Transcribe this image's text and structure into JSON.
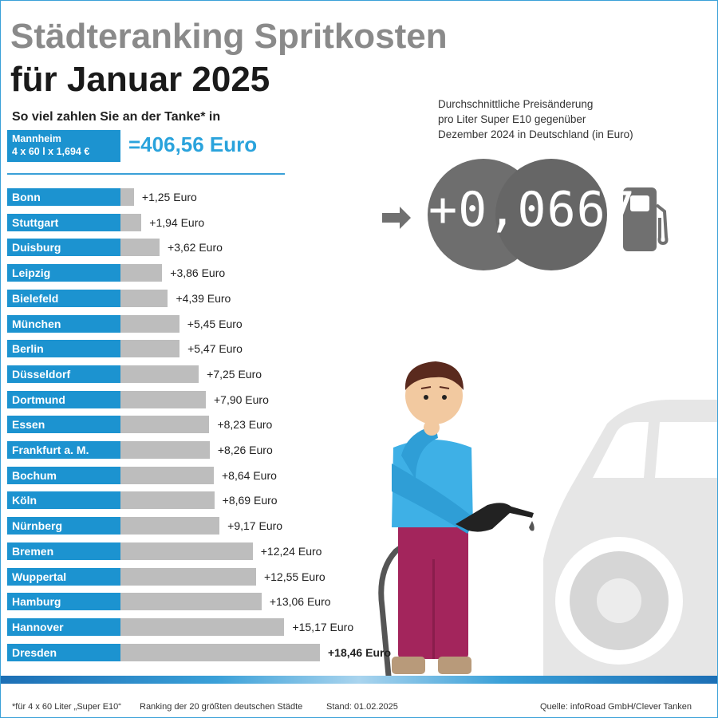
{
  "header": {
    "title_line1": "Städteranking Spritkosten",
    "title_line2": "für Januar 2025",
    "subtitle": "So viel zahlen Sie an der Tanke* in"
  },
  "reference": {
    "city": "Mannheim",
    "formula": "4 x 60 l x 1,694 €",
    "value_text": "=406,56 Euro"
  },
  "info": {
    "line1": "Durchschnittliche Preisänderung",
    "line2": "pro Liter Super E10 gegenüber",
    "line3": "Dezember 2024 in Deutschland (in Euro)",
    "price_change": "+0,0667"
  },
  "icons": [
    "arrow-right-icon",
    "fuel-pump-icon",
    "fuel-nozzle-icon",
    "car-icon",
    "person-illustration"
  ],
  "colors": {
    "city_label": "#1c93d0",
    "bar": "#bdbdbd",
    "reference_value": "#2aa3dc",
    "title_gray": "#8a8a8a",
    "coin": "#6b6b6b",
    "car": "#e6e6e6"
  },
  "chart_data": {
    "type": "bar",
    "orientation": "horizontal",
    "unit": "Euro",
    "categories": [
      "Bonn",
      "Stuttgart",
      "Duisburg",
      "Leipzig",
      "Bielefeld",
      "München",
      "Berlin",
      "Düsseldorf",
      "Dortmund",
      "Essen",
      "Frankfurt a. M.",
      "Bochum",
      "Köln",
      "Nürnberg",
      "Bremen",
      "Wuppertal",
      "Hamburg",
      "Hannover",
      "Dresden"
    ],
    "values": [
      1.25,
      1.94,
      3.62,
      3.86,
      4.39,
      5.45,
      5.47,
      7.25,
      7.9,
      8.23,
      8.26,
      8.64,
      8.69,
      9.17,
      12.24,
      12.55,
      13.06,
      15.17,
      18.46
    ],
    "value_labels": [
      "+1,25 Euro",
      "+1,94 Euro",
      "+3,62 Euro",
      "+3,86 Euro",
      "+4,39 Euro",
      "+5,45 Euro",
      "+5,47 Euro",
      "+7,25 Euro",
      "+7,90 Euro",
      "+8,23 Euro",
      "+8,26 Euro",
      "+8,64 Euro",
      "+8,69 Euro",
      "+9,17 Euro",
      "+12,24 Euro",
      "+12,55 Euro",
      "+13,06 Euro",
      "+15,17 Euro",
      "+18,46 Euro"
    ],
    "highlighted": "Dresden",
    "title": "Städteranking Spritkosten für Januar 2025",
    "xlabel": "",
    "ylabel": "",
    "xlim": [
      0,
      18.46
    ],
    "grid": false,
    "legend": "none"
  },
  "footer": {
    "note": "*für 4 x 60 Liter „Super E10“",
    "ranking": "Ranking der 20 größten deutschen Städte",
    "date": "Stand: 01.02.2025",
    "source": "Quelle: infoRoad GmbH/Clever Tanken"
  }
}
